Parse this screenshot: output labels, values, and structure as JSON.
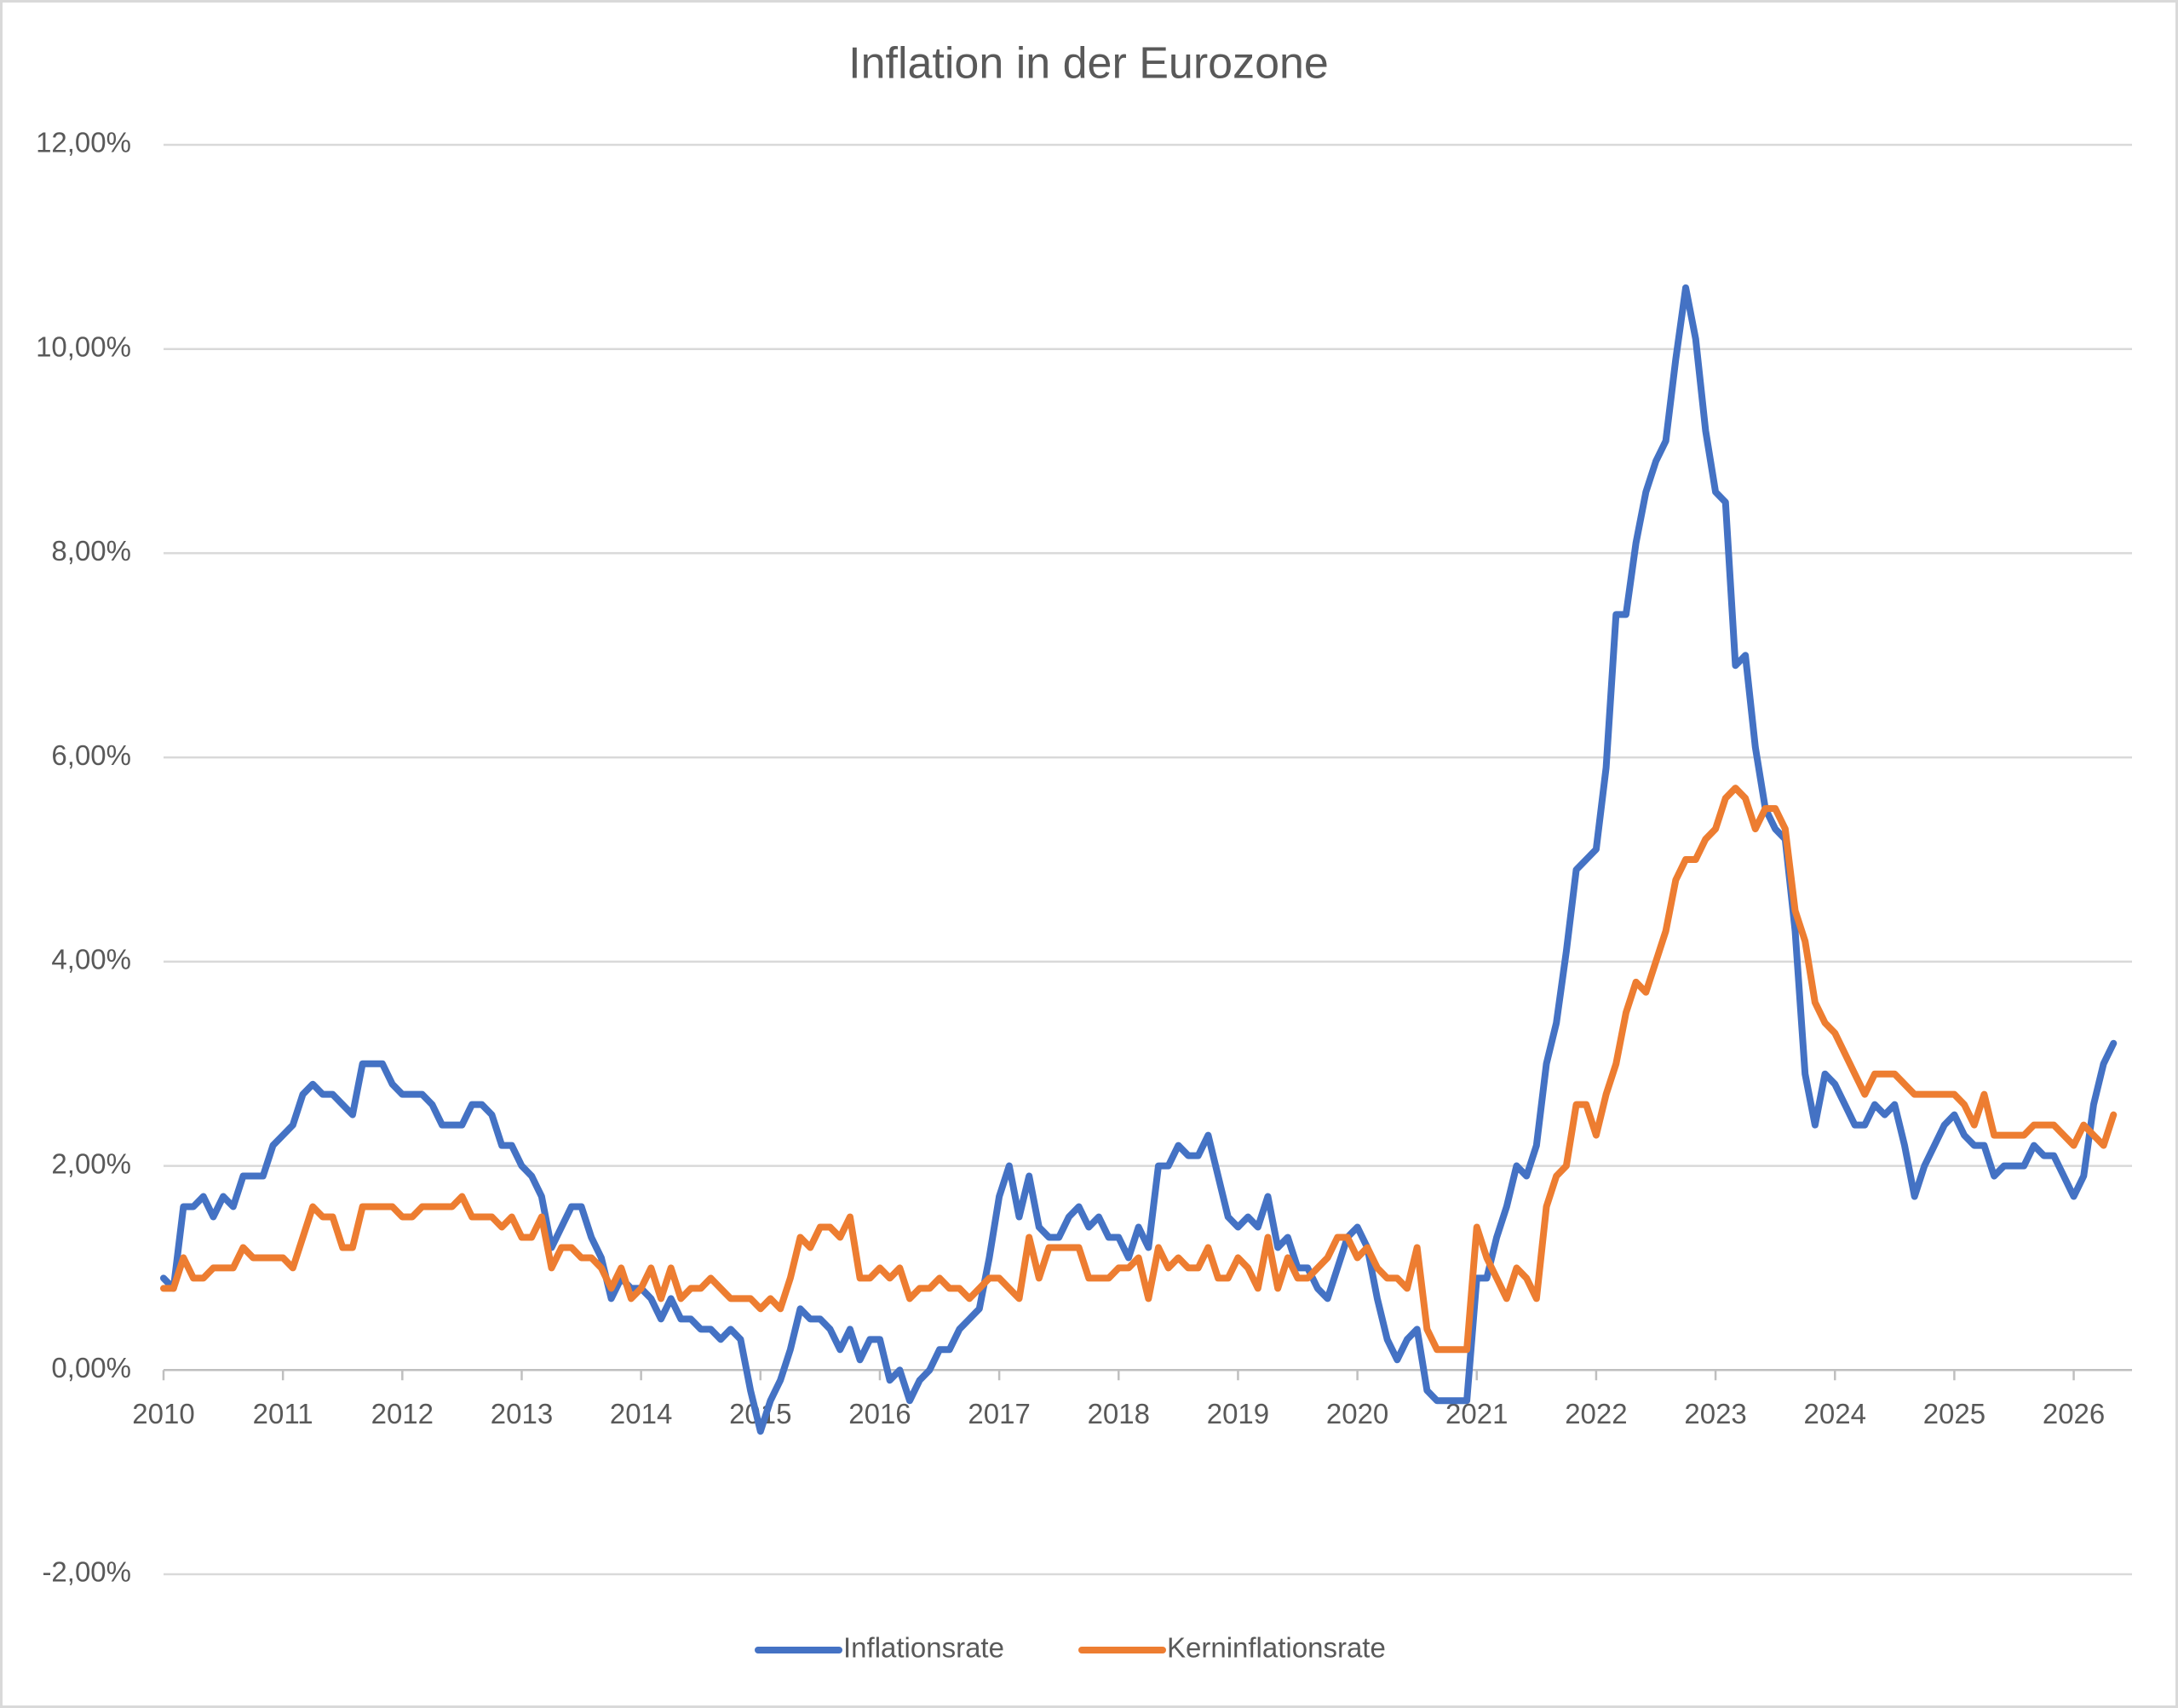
{
  "chart_data": {
    "type": "line",
    "title": "Inflation in der Eurozone",
    "categories": [
      "2010",
      null,
      null,
      null,
      null,
      null,
      null,
      null,
      null,
      null,
      null,
      null,
      "2011",
      null,
      null,
      null,
      null,
      null,
      null,
      null,
      null,
      null,
      null,
      null,
      "2012",
      null,
      null,
      null,
      null,
      null,
      null,
      null,
      null,
      null,
      null,
      null,
      "2013",
      null,
      null,
      null,
      null,
      null,
      null,
      null,
      null,
      null,
      null,
      null,
      "2014",
      null,
      null,
      null,
      null,
      null,
      null,
      null,
      null,
      null,
      null,
      null,
      "2015",
      null,
      null,
      null,
      null,
      null,
      null,
      null,
      null,
      null,
      null,
      null,
      "2016",
      null,
      null,
      null,
      null,
      null,
      null,
      null,
      null,
      null,
      null,
      null,
      "2017",
      null,
      null,
      null,
      null,
      null,
      null,
      null,
      null,
      null,
      null,
      null,
      "2018",
      null,
      null,
      null,
      null,
      null,
      null,
      null,
      null,
      null,
      null,
      null,
      "2019",
      null,
      null,
      null,
      null,
      null,
      null,
      null,
      null,
      null,
      null,
      null,
      "2020",
      null,
      null,
      null,
      null,
      null,
      null,
      null,
      null,
      null,
      null,
      null,
      "2021",
      null,
      null,
      null,
      null,
      null,
      null,
      null,
      null,
      null,
      null,
      null,
      "2022",
      null,
      null,
      null,
      null,
      null,
      null,
      null,
      null,
      null,
      null,
      null,
      "2023",
      null,
      null,
      null,
      null,
      null,
      null,
      null,
      null,
      null,
      null,
      null,
      "2024",
      null,
      null,
      null,
      null,
      null,
      null,
      null,
      null,
      null,
      null,
      null,
      "2025",
      null,
      null,
      null,
      null,
      null,
      null,
      null,
      null,
      null,
      null,
      null,
      "2026",
      null,
      null,
      null,
      null
    ],
    "series": [
      {
        "name": "Inflationsrate",
        "color": "#4472c4",
        "values": [
          0.9,
          0.8,
          1.6,
          1.6,
          1.7,
          1.5,
          1.7,
          1.6,
          1.9,
          1.9,
          1.9,
          2.2,
          2.3,
          2.4,
          2.7,
          2.8,
          2.7,
          2.7,
          2.6,
          2.5,
          3.0,
          3.0,
          3.0,
          2.8,
          2.7,
          2.7,
          2.7,
          2.6,
          2.4,
          2.4,
          2.4,
          2.6,
          2.6,
          2.5,
          2.2,
          2.2,
          2.0,
          1.9,
          1.7,
          1.2,
          1.4,
          1.6,
          1.6,
          1.3,
          1.1,
          0.7,
          0.9,
          0.8,
          0.8,
          0.7,
          0.5,
          0.7,
          0.5,
          0.5,
          0.4,
          0.4,
          0.3,
          0.4,
          0.3,
          -0.2,
          -0.6,
          -0.3,
          -0.1,
          0.2,
          0.6,
          0.5,
          0.5,
          0.4,
          0.2,
          0.4,
          0.1,
          0.3,
          0.3,
          -0.1,
          0.0,
          -0.3,
          -0.1,
          0.0,
          0.2,
          0.2,
          0.4,
          0.5,
          0.6,
          1.1,
          1.7,
          2.0,
          1.5,
          1.9,
          1.4,
          1.3,
          1.3,
          1.5,
          1.6,
          1.4,
          1.5,
          1.3,
          1.3,
          1.1,
          1.4,
          1.2,
          2.0,
          2.0,
          2.2,
          2.1,
          2.1,
          2.3,
          1.9,
          1.5,
          1.4,
          1.5,
          1.4,
          1.7,
          1.2,
          1.3,
          1.0,
          1.0,
          0.8,
          0.7,
          1.0,
          1.3,
          1.4,
          1.2,
          0.7,
          0.3,
          0.1,
          0.3,
          0.4,
          -0.2,
          -0.3,
          -0.3,
          -0.3,
          -0.3,
          0.9,
          0.9,
          1.3,
          1.6,
          2.0,
          1.9,
          2.2,
          3.0,
          3.4,
          4.1,
          4.9,
          5.0,
          5.1,
          5.9,
          7.4,
          7.4,
          8.1,
          8.6,
          8.9,
          9.1,
          9.9,
          10.6,
          10.1,
          9.2,
          8.6,
          8.5,
          6.9,
          7.0,
          6.1,
          5.5,
          5.3,
          5.2,
          4.3,
          2.9,
          2.4,
          2.9,
          2.8,
          2.6,
          2.4,
          2.4,
          2.6,
          2.5,
          2.6,
          2.2,
          1.7,
          2.0,
          2.2,
          2.4,
          2.5,
          2.3,
          2.2,
          2.2,
          1.9,
          2.0,
          2.0,
          2.0,
          2.2,
          2.1,
          2.1,
          1.9,
          1.7,
          1.9,
          2.6,
          3.0,
          3.2
        ]
      },
      {
        "name": "Kerninflationsrate",
        "color": "#ed7d31",
        "values": [
          0.8,
          0.8,
          1.1,
          0.9,
          0.9,
          1.0,
          1.0,
          1.0,
          1.2,
          1.1,
          1.1,
          1.1,
          1.1,
          1.0,
          1.3,
          1.6,
          1.5,
          1.5,
          1.2,
          1.2,
          1.6,
          1.6,
          1.6,
          1.6,
          1.5,
          1.5,
          1.6,
          1.6,
          1.6,
          1.6,
          1.7,
          1.5,
          1.5,
          1.5,
          1.4,
          1.5,
          1.3,
          1.3,
          1.5,
          1.0,
          1.2,
          1.2,
          1.1,
          1.1,
          1.0,
          0.8,
          1.0,
          0.7,
          0.8,
          1.0,
          0.7,
          1.0,
          0.7,
          0.8,
          0.8,
          0.9,
          0.8,
          0.7,
          0.7,
          0.7,
          0.6,
          0.7,
          0.6,
          0.9,
          1.3,
          1.2,
          1.4,
          1.4,
          1.3,
          1.5,
          0.9,
          0.9,
          1.0,
          0.9,
          1.0,
          0.7,
          0.8,
          0.8,
          0.9,
          0.8,
          0.8,
          0.7,
          0.8,
          0.9,
          0.9,
          0.8,
          0.7,
          1.3,
          0.9,
          1.2,
          1.2,
          1.2,
          1.2,
          0.9,
          0.9,
          0.9,
          1.0,
          1.0,
          1.1,
          0.7,
          1.2,
          1.0,
          1.1,
          1.0,
          1.0,
          1.2,
          0.9,
          0.9,
          1.1,
          1.0,
          0.8,
          1.3,
          0.8,
          1.1,
          0.9,
          0.9,
          1.0,
          1.1,
          1.3,
          1.3,
          1.1,
          1.2,
          1.0,
          0.9,
          0.9,
          0.8,
          1.2,
          0.4,
          0.2,
          0.2,
          0.2,
          0.2,
          1.4,
          1.1,
          0.9,
          0.7,
          1.0,
          0.9,
          0.7,
          1.6,
          1.9,
          2.0,
          2.6,
          2.6,
          2.3,
          2.7,
          3.0,
          3.5,
          3.8,
          3.7,
          4.0,
          4.3,
          4.8,
          5.0,
          5.0,
          5.2,
          5.3,
          5.6,
          5.7,
          5.6,
          5.3,
          5.5,
          5.5,
          5.3,
          4.5,
          4.2,
          3.6,
          3.4,
          3.3,
          3.1,
          2.9,
          2.7,
          2.9,
          2.9,
          2.9,
          2.8,
          2.7,
          2.7,
          2.7,
          2.7,
          2.7,
          2.6,
          2.4,
          2.7,
          2.3,
          2.3,
          2.3,
          2.3,
          2.4,
          2.4,
          2.4,
          2.3,
          2.2,
          2.4,
          2.3,
          2.2,
          2.5
        ]
      }
    ],
    "ylim": [
      -2,
      12
    ],
    "yticks": [
      {
        "value": -2,
        "label": "-2,00%"
      },
      {
        "value": 0,
        "label": "0,00%"
      },
      {
        "value": 2,
        "label": "2,00%"
      },
      {
        "value": 4,
        "label": "4,00%"
      },
      {
        "value": 6,
        "label": "6,00%"
      },
      {
        "value": 8,
        "label": "8,00%"
      },
      {
        "value": 10,
        "label": "10,00%"
      },
      {
        "value": 12,
        "label": "12,00%"
      }
    ],
    "grid": true,
    "legend": "bottom"
  }
}
